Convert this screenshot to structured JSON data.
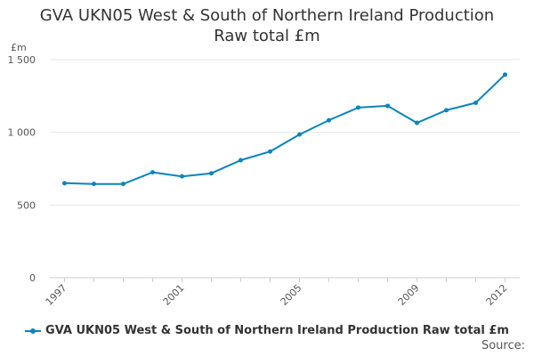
{
  "chart_data": {
    "type": "line",
    "title_lines": [
      "GVA UKN05 West & South of Northern Ireland Production",
      "Raw total £m"
    ],
    "ylabel": "£m",
    "xlabel": "",
    "x": [
      1997,
      1998,
      1999,
      2000,
      2001,
      2002,
      2003,
      2004,
      2005,
      2006,
      2007,
      2008,
      2009,
      2010,
      2011,
      2012
    ],
    "series": [
      {
        "name": "GVA UKN05 West & South of Northern Ireland Production Raw total £m",
        "values": [
          650,
          645,
          645,
          725,
          697,
          718,
          808,
          868,
          985,
          1083,
          1170,
          1182,
          1065,
          1152,
          1203,
          1397
        ],
        "color": "#0b84bd"
      }
    ],
    "ylim": [
      0,
      1500
    ],
    "y_ticks": [
      0,
      500,
      1000,
      1500
    ],
    "y_tick_labels": [
      "0",
      "500",
      "1 000",
      "1 500"
    ],
    "x_tick_labels": [
      "1997",
      "2001",
      "2005",
      "2009",
      "2012"
    ],
    "x_tick_years": [
      1997,
      2001,
      2005,
      2009,
      2012
    ],
    "grid": true,
    "legend_position": "bottom",
    "source_label": "Source:"
  }
}
